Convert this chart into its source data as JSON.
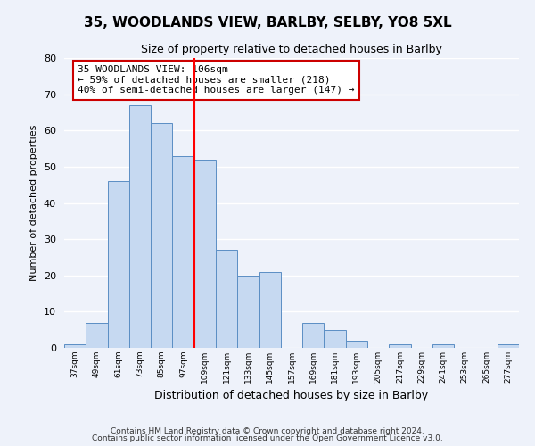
{
  "title": "35, WOODLANDS VIEW, BARLBY, SELBY, YO8 5XL",
  "subtitle": "Size of property relative to detached houses in Barlby",
  "xlabel": "Distribution of detached houses by size in Barlby",
  "ylabel": "Number of detached properties",
  "bar_labels": [
    "37sqm",
    "49sqm",
    "61sqm",
    "73sqm",
    "85sqm",
    "97sqm",
    "109sqm",
    "121sqm",
    "133sqm",
    "145sqm",
    "157sqm",
    "169sqm",
    "181sqm",
    "193sqm",
    "205sqm",
    "217sqm",
    "229sqm",
    "241sqm",
    "253sqm",
    "265sqm",
    "277sqm"
  ],
  "bar_values": [
    1,
    7,
    46,
    67,
    62,
    53,
    52,
    27,
    20,
    21,
    0,
    7,
    5,
    2,
    0,
    1,
    0,
    1,
    0,
    0,
    1
  ],
  "bar_color": "#c6d9f1",
  "bar_edge_color": "#5b8ec4",
  "reference_line_color": "red",
  "annotation_text": "35 WOODLANDS VIEW: 106sqm\n← 59% of detached houses are smaller (218)\n40% of semi-detached houses are larger (147) →",
  "annotation_box_color": "white",
  "annotation_box_edge": "#cc0000",
  "ylim": [
    0,
    80
  ],
  "yticks": [
    0,
    10,
    20,
    30,
    40,
    50,
    60,
    70,
    80
  ],
  "footer1": "Contains HM Land Registry data © Crown copyright and database right 2024.",
  "footer2": "Contains public sector information licensed under the Open Government Licence v3.0.",
  "bg_color": "#eef2fa",
  "grid_color": "white"
}
